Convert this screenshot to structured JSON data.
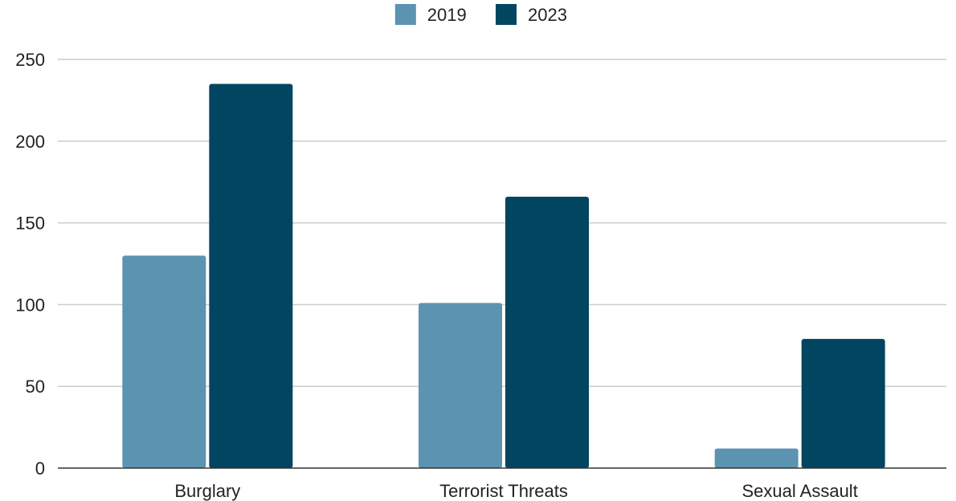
{
  "chart_data": {
    "type": "bar",
    "title": "",
    "xlabel": "",
    "ylabel": "",
    "categories": [
      "Burglary",
      "Terrorist Threats",
      "Sexual Assault"
    ],
    "series": [
      {
        "name": "2019",
        "color": "#5b93b1",
        "values": [
          130,
          101,
          12
        ]
      },
      {
        "name": "2023",
        "color": "#024560",
        "values": [
          235,
          166,
          79
        ]
      }
    ],
    "ylim": [
      0,
      250
    ],
    "yticks": [
      0,
      50,
      100,
      150,
      200,
      250
    ],
    "grid": true,
    "legend_position": "top-center"
  }
}
